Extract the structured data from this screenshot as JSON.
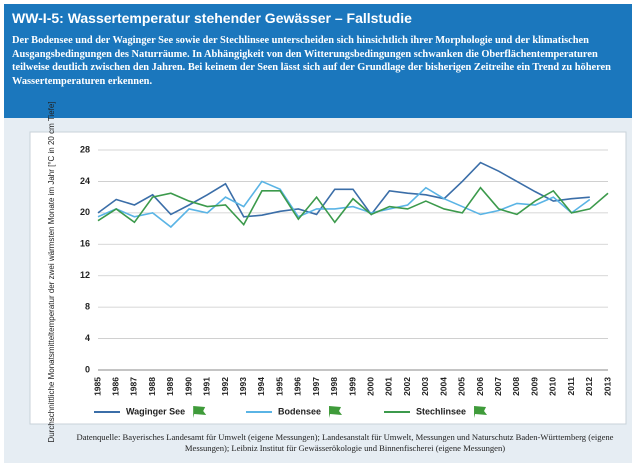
{
  "header": {
    "title": "WW-I-5: Wassertemperatur stehender Gewässer – Fallstudie",
    "text": "Der Bodensee und der Waginger See sowie der Stechlinsee unterscheiden sich hinsichtlich ihrer Morphologie und der klimatischen Ausgangsbedingungen des Naturräume. In Abhängigkeit von den Witterungsbedingungen schwanken die Oberflächentemperaturen teilweise deutlich zwischen den Jahren. Bei keinem der Seen lässt sich auf der Grundlage der bisherigen Zeitreihe ein Trend zu höheren Wassertemperaturen erkennen."
  },
  "chart_data": {
    "type": "line",
    "y_label": "Durchschnittliche Monatsmitteltemperatur der zwei wärmsten Monate im Jahr [°C in 20 cm Tiefe]",
    "categories": [
      "1985",
      "1986",
      "1987",
      "1988",
      "1989",
      "1990",
      "1991",
      "1992",
      "1993",
      "1994",
      "1995",
      "1996",
      "1997",
      "1998",
      "1999",
      "2000",
      "2001",
      "2002",
      "2003",
      "2004",
      "2005",
      "2006",
      "2007",
      "2008",
      "2009",
      "2010",
      "2011",
      "2012",
      "2013"
    ],
    "series": [
      {
        "name": "Waginger See",
        "color": "#3b6ea8",
        "values": [
          20,
          21.7,
          21,
          22.3,
          19.8,
          21,
          22.3,
          23.7,
          19.5,
          19.7,
          20.2,
          20.5,
          19.8,
          23,
          23,
          19.8,
          22.8,
          22.5,
          22.3,
          21.8,
          24,
          26.4,
          25.3,
          24,
          22.7,
          21.5,
          21.8,
          22,
          null
        ]
      },
      {
        "name": "Bodensee",
        "color": "#5ab4e5",
        "values": [
          19.5,
          20.5,
          19.5,
          20,
          18.2,
          20.5,
          20,
          22,
          20.8,
          24,
          23,
          19.5,
          20.5,
          20.5,
          20.8,
          20,
          20.5,
          21,
          23.2,
          21.8,
          20.8,
          19.8,
          20.3,
          21.2,
          21,
          22,
          20,
          21.7,
          null
        ]
      },
      {
        "name": "Stechlinsee",
        "color": "#3c9a4c",
        "values": [
          19,
          20.5,
          18.8,
          22,
          22.5,
          21.5,
          20.8,
          21,
          18.5,
          22.8,
          22.8,
          19.2,
          22,
          18.8,
          21.8,
          19.8,
          20.8,
          20.5,
          21.5,
          20.5,
          20,
          23.2,
          20.5,
          19.8,
          21.5,
          22.8,
          20,
          20.5,
          22.5
        ]
      }
    ],
    "ylim": [
      0,
      28
    ],
    "yticks": [
      0,
      4,
      8,
      12,
      16,
      20,
      24,
      28
    ],
    "grid": true,
    "source": "Datenquelle: Bayerisches Landesamt für Umwelt (eigene Messungen); Landesanstalt für Umwelt, Messungen und Naturschutz Baden-Württemberg (eigene Messungen); Leibniz Institut für Gewässerökologie und Binnenfischerei (eigene Messungen)"
  }
}
